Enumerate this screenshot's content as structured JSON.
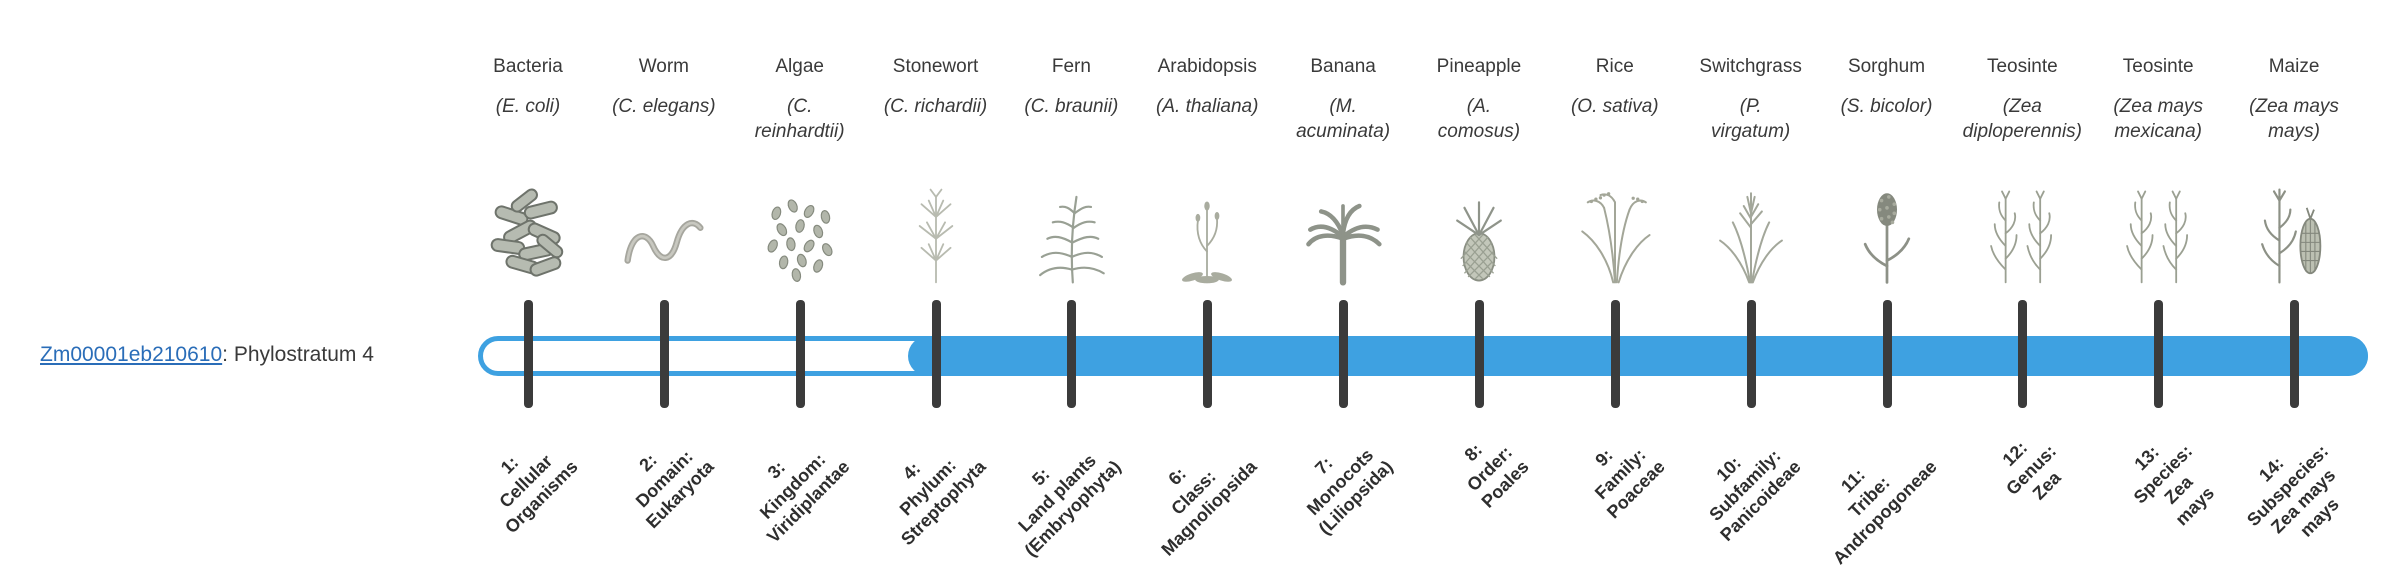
{
  "page": {
    "background": "#ffffff"
  },
  "gene": {
    "id": "Zm00001eb210610",
    "label_suffix": ": Phylostratum 4",
    "link_color": "#2a6db8"
  },
  "timeline": {
    "accent_color": "#3ea1e1",
    "tick_color": "#3b3b3b",
    "filled_from_stratum": 4,
    "total_strata": 14
  },
  "organisms": [
    {
      "stratum": 1,
      "common": "Bacteria",
      "sci": "(E. coli)",
      "illustration": "bacteria",
      "label": "1:\nCellular\nOrganisms"
    },
    {
      "stratum": 2,
      "common": "Worm",
      "sci": "(C. elegans)",
      "illustration": "worm",
      "label": "2:\nDomain:\nEukaryota"
    },
    {
      "stratum": 3,
      "common": "Algae",
      "sci": "(C.\nreinhardtii)",
      "illustration": "algae",
      "label": "3:\nKingdom:\nViridiplantae"
    },
    {
      "stratum": 4,
      "common": "Stonewort",
      "sci": "(C. richardii)",
      "illustration": "stonewort",
      "label": "4:\nPhylum:\nStreptophyta"
    },
    {
      "stratum": 5,
      "common": "Fern",
      "sci": "(C. braunii)",
      "illustration": "fern",
      "label": "5:\nLand plants\n(Embryophyta)"
    },
    {
      "stratum": 6,
      "common": "Arabidopsis",
      "sci": "(A. thaliana)",
      "illustration": "arabidopsis",
      "label": "6:\nClass:\nMagnoliopsida"
    },
    {
      "stratum": 7,
      "common": "Banana",
      "sci": "(M.\nacuminata)",
      "illustration": "banana",
      "label": "7:\nMonocots\n(Liliopsida)"
    },
    {
      "stratum": 8,
      "common": "Pineapple",
      "sci": "(A.\ncomosus)",
      "illustration": "pineapple",
      "label": "8:\nOrder:\nPoales"
    },
    {
      "stratum": 9,
      "common": "Rice",
      "sci": "(O. sativa)",
      "illustration": "rice",
      "label": "9:\nFamily:\nPoaceae"
    },
    {
      "stratum": 10,
      "common": "Switchgrass",
      "sci": "(P.\nvirgatum)",
      "illustration": "switchgrass",
      "label": "10:\nSubfamily:\nPanicoideae"
    },
    {
      "stratum": 11,
      "common": "Sorghum",
      "sci": "(S. bicolor)",
      "illustration": "sorghum",
      "label": "11:\nTribe:\nAndropogoneae"
    },
    {
      "stratum": 12,
      "common": "Teosinte",
      "sci": "(Zea\ndiploperennis)",
      "illustration": "teosinte",
      "label": "12:\nGenus:\nZea"
    },
    {
      "stratum": 13,
      "common": "Teosinte",
      "sci": "(Zea mays\nmexicana)",
      "illustration": "teosinte",
      "label": "13:\nSpecies:\nZea\nmays"
    },
    {
      "stratum": 14,
      "common": "Maize",
      "sci": "(Zea mays\nmays)",
      "illustration": "maize",
      "label": "14:\nSubspecies:\nZea mays\nmays"
    }
  ]
}
